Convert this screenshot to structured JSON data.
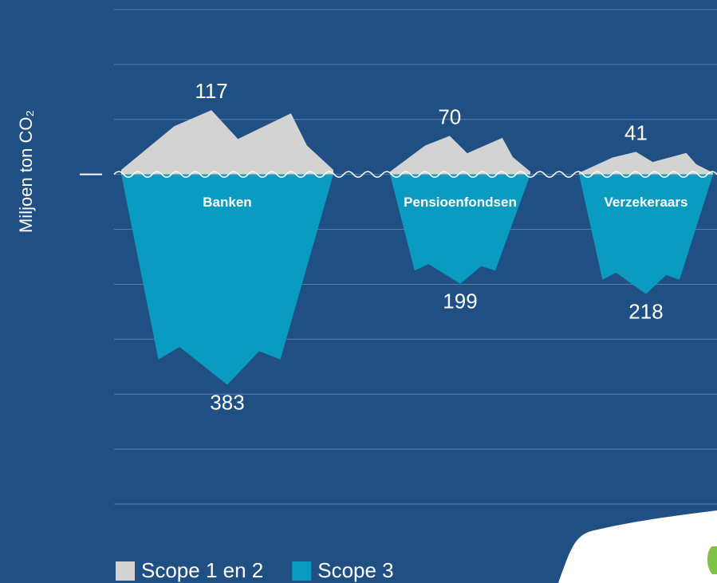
{
  "chart_data": {
    "type": "iceberg",
    "y_label": "Miljoen ton CO₂",
    "categories": [
      "Banken",
      "Pensioenfondsen",
      "Verzekeraars"
    ],
    "series": [
      {
        "name": "Scope 1 en 2",
        "color": "#d3d3d3",
        "values": [
          117,
          70,
          41
        ]
      },
      {
        "name": "Scope 3",
        "color": "#0a9cc0",
        "values": [
          383,
          199,
          218
        ]
      }
    ],
    "ylim": [
      -600,
      300
    ],
    "yticks": [
      -600,
      -500,
      -400,
      -300,
      -200,
      -100,
      0,
      100,
      200,
      300
    ],
    "grid": true
  }
}
